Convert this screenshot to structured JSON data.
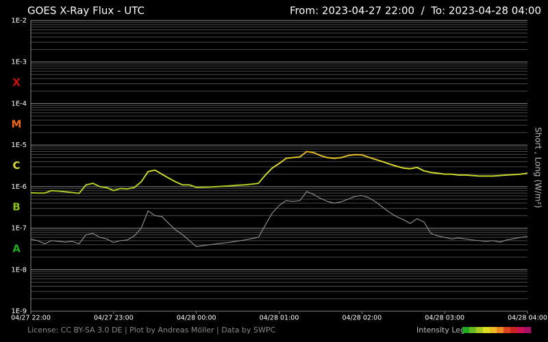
{
  "chart_data": {
    "type": "line",
    "title": "GOES X-Ray Flux - UTC",
    "subtitle": "From: 2023-04-27 22:00  /  To: 2023-04-28 04:00",
    "y_label": "Short , Long (W/m²)",
    "footer": "License: CC BY-SA 3.0 DE | Plot by Andreas Möller | Data by SWPC",
    "intensity_legend": {
      "label": "Intensity Legend",
      "colors": [
        "#22aa22",
        "#66bb22",
        "#aacc22",
        "#dddd22",
        "#eebb22",
        "#ee8822",
        "#dd4422",
        "#cc2222",
        "#cc1155",
        "#aa1166"
      ]
    },
    "log_y": true,
    "grid": true,
    "minor_grid": true,
    "flare_classes": [
      {
        "label": "A",
        "color": "#22aa22"
      },
      {
        "label": "B",
        "color": "#88c020"
      },
      {
        "label": "C",
        "color": "#dddd30"
      },
      {
        "label": "M",
        "color": "#ee6610"
      },
      {
        "label": "X",
        "color": "#cc1111"
      }
    ],
    "xlim": [
      "04/27 22:00",
      "04/28 04:00"
    ],
    "xticks": [
      "04/27 22:00",
      "04/27 23:00",
      "04/28 00:00",
      "04/28 01:00",
      "04/28 02:00",
      "04/28 03:00",
      "04/28 04:00"
    ],
    "ylim": [
      1e-09,
      0.01
    ],
    "yticks": [
      {
        "value": 1e-09,
        "label": "1E-9"
      },
      {
        "value": 1e-08,
        "label": "1E-8"
      },
      {
        "value": 1e-07,
        "label": "1E-7"
      },
      {
        "value": 1e-06,
        "label": "1E-6"
      },
      {
        "value": 1e-05,
        "label": "1E-5"
      },
      {
        "value": 0.0001,
        "label": "1E-4"
      },
      {
        "value": 0.001,
        "label": "1E-3"
      },
      {
        "value": 0.01,
        "label": "1E-2"
      }
    ],
    "x": [
      "04/27 22:00",
      "04/27 22:05",
      "04/27 22:10",
      "04/27 22:15",
      "04/27 22:20",
      "04/27 22:25",
      "04/27 22:30",
      "04/27 22:35",
      "04/27 22:40",
      "04/27 22:45",
      "04/27 22:50",
      "04/27 22:55",
      "04/27 23:00",
      "04/27 23:05",
      "04/27 23:10",
      "04/27 23:15",
      "04/27 23:20",
      "04/27 23:25",
      "04/27 23:30",
      "04/27 23:35",
      "04/27 23:40",
      "04/27 23:45",
      "04/27 23:50",
      "04/27 23:55",
      "04/28 00:00",
      "04/28 00:05",
      "04/28 00:10",
      "04/28 00:15",
      "04/28 00:20",
      "04/28 00:25",
      "04/28 00:30",
      "04/28 00:35",
      "04/28 00:40",
      "04/28 00:45",
      "04/28 00:50",
      "04/28 00:55",
      "04/28 01:00",
      "04/28 01:05",
      "04/28 01:10",
      "04/28 01:15",
      "04/28 01:20",
      "04/28 01:25",
      "04/28 01:30",
      "04/28 01:35",
      "04/28 01:40",
      "04/28 01:45",
      "04/28 01:50",
      "04/28 01:55",
      "04/28 02:00",
      "04/28 02:05",
      "04/28 02:10",
      "04/28 02:15",
      "04/28 02:20",
      "04/28 02:25",
      "04/28 02:30",
      "04/28 02:35",
      "04/28 02:40",
      "04/28 02:45",
      "04/28 02:50",
      "04/28 02:55",
      "04/28 03:00",
      "04/28 03:05",
      "04/28 03:10",
      "04/28 03:15",
      "04/28 03:20",
      "04/28 03:25",
      "04/28 03:30",
      "04/28 03:35",
      "04/28 03:40",
      "04/28 03:45",
      "04/28 03:50",
      "04/28 03:55",
      "04/28 04:00"
    ],
    "series": [
      {
        "name": "Short",
        "color": "#8c8c8c",
        "values": [
          5.4e-08,
          5e-08,
          4.2e-08,
          5e-08,
          4.8e-08,
          4.6e-08,
          4.8e-08,
          4.2e-08,
          7e-08,
          7.5e-08,
          6e-08,
          5.5e-08,
          4.5e-08,
          5e-08,
          5.2e-08,
          6.5e-08,
          1e-07,
          2.6e-07,
          2e-07,
          1.9e-07,
          1.3e-07,
          9e-08,
          7e-08,
          5e-08,
          3.6e-08,
          3.8e-08,
          4e-08,
          4.2e-08,
          4.4e-08,
          4.6e-08,
          4.9e-08,
          5.2e-08,
          5.6e-08,
          6e-08,
          1.2e-07,
          2.3e-07,
          3.5e-07,
          4.6e-07,
          4.4e-07,
          4.6e-07,
          7.6e-07,
          6.5e-07,
          5.2e-07,
          4.4e-07,
          4e-07,
          4.3e-07,
          5e-07,
          5.8e-07,
          6.1e-07,
          5.4e-07,
          4.3e-07,
          3.2e-07,
          2.4e-07,
          1.9e-07,
          1.6e-07,
          1.3e-07,
          1.7e-07,
          1.4e-07,
          7.5e-08,
          6.5e-08,
          6e-08,
          5.5e-08,
          5.8e-08,
          5.5e-08,
          5.2e-08,
          5e-08,
          4.8e-08,
          5e-08,
          4.6e-08,
          5.2e-08,
          5.6e-08,
          6e-08,
          6.3e-08
        ]
      },
      {
        "name": "Long",
        "color_by_class": true,
        "values": [
          7.1e-07,
          7e-07,
          7e-07,
          8e-07,
          7.8e-07,
          7.5e-07,
          7.2e-07,
          6.9e-07,
          1.1e-06,
          1.2e-06,
          1e-06,
          9.5e-07,
          8e-07,
          9e-07,
          8.8e-07,
          9.5e-07,
          1.3e-06,
          2.3e-06,
          2.5e-06,
          2e-06,
          1.6e-06,
          1.3e-06,
          1.1e-06,
          1.1e-06,
          9.6e-07,
          9.7e-07,
          9.8e-07,
          1e-06,
          1.02e-06,
          1.05e-06,
          1.08e-06,
          1.1e-06,
          1.15e-06,
          1.2e-06,
          1.9e-06,
          2.8e-06,
          3.6e-06,
          4.8e-06,
          5e-06,
          5.2e-06,
          7e-06,
          6.6e-06,
          5.6e-06,
          5e-06,
          4.8e-06,
          5e-06,
          5.6e-06,
          5.9e-06,
          5.8e-06,
          5.1e-06,
          4.5e-06,
          4e-06,
          3.5e-06,
          3.1e-06,
          2.8e-06,
          2.7e-06,
          2.9e-06,
          2.4e-06,
          2.2e-06,
          2.1e-06,
          2e-06,
          2e-06,
          1.9e-06,
          1.9e-06,
          1.85e-06,
          1.8e-06,
          1.8e-06,
          1.8e-06,
          1.85e-06,
          1.9e-06,
          1.95e-06,
          2e-06,
          2.1e-06
        ]
      }
    ]
  }
}
